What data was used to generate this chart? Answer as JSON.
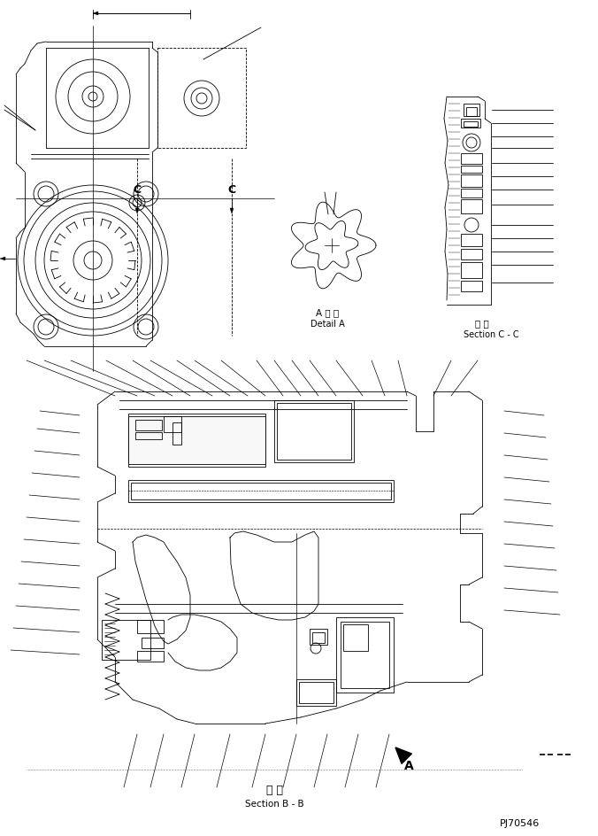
{
  "bg_color": "#ffffff",
  "line_color": "#000000",
  "title_bottom_jp": "断 面",
  "title_bottom_en": "Section B - B",
  "part_number": "PJ70546",
  "detail_a_jp": "A 詳 細",
  "detail_a_en": "Detail A",
  "section_cc_jp": "断 面",
  "section_cc_en": "Section C - C",
  "label_c1": "C",
  "label_c2": "C",
  "label_a": "A",
  "fig_width": 6.76,
  "fig_height": 9.45,
  "dpi": 100
}
